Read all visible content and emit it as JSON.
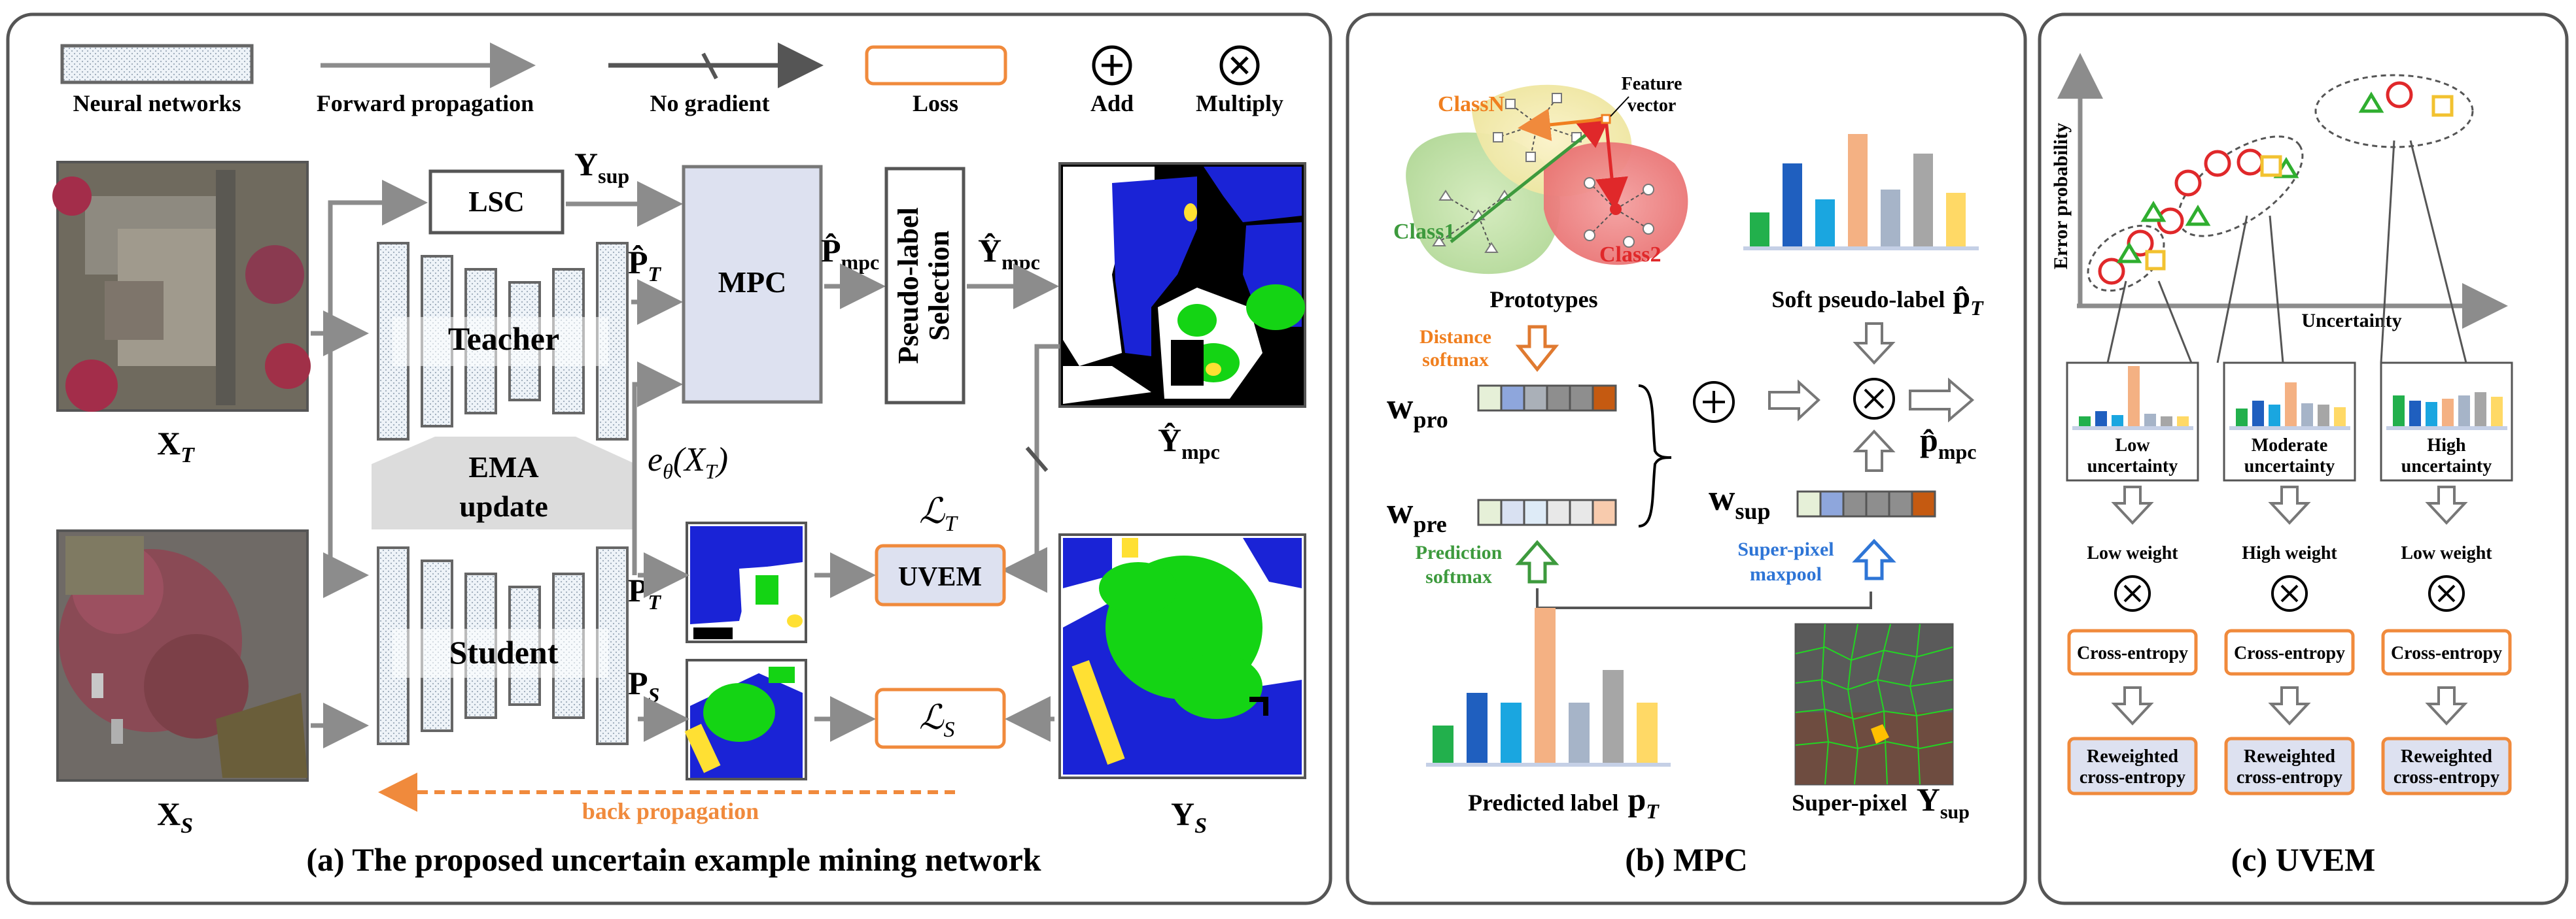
{
  "legend": {
    "neural_networks": "Neural networks",
    "forward_propagation": "Forward propagation",
    "no_gradient": "No gradient",
    "loss": "Loss",
    "add": "Add",
    "multiply": "Multiply"
  },
  "panel_a": {
    "caption": "(a) The proposed uncertain example mining network",
    "lsc": "LSC",
    "mpc": "MPC",
    "pseudo_label_selection": [
      "Pseudo-label",
      "Selection"
    ],
    "teacher": "Teacher",
    "student": "Student",
    "ema": [
      "EMA",
      "update"
    ],
    "uvem": "UVEM",
    "back_propagation": "back propagation",
    "y_sup": {
      "main": "Y",
      "sub": "sup"
    },
    "p_hat_t": {
      "main": "P̂",
      "sub": "T"
    },
    "p_hat_mpc": {
      "main": "P̂",
      "sub": "mpc"
    },
    "y_hat_mpc": {
      "main": "Ŷ",
      "sub": "mpc"
    },
    "e_theta": {
      "main": "e",
      "sub": "θ",
      "arg": "(X",
      "argsub": "T",
      "close": ")"
    },
    "x_t": {
      "main": "X",
      "sub": "T"
    },
    "x_s": {
      "main": "X",
      "sub": "S"
    },
    "p_t": {
      "main": "P",
      "sub": "T"
    },
    "p_s": {
      "main": "P",
      "sub": "S"
    },
    "y_s": {
      "main": "Y",
      "sub": "S"
    },
    "y_hat_mpc_bottom": {
      "main": "Ŷ",
      "sub": "mpc"
    },
    "loss_t": {
      "main": "ℒ",
      "sub": "T"
    },
    "loss_s": {
      "main": "ℒ",
      "sub": "S"
    }
  },
  "panel_b": {
    "caption": "(b) MPC",
    "class_n": "ClassN",
    "class_1": "Class1",
    "class_2": "Class2",
    "feature_vector": [
      "Feature",
      "vector"
    ],
    "prototypes": "Prototypes",
    "soft_pseudo_label": "Soft pseudo-label",
    "soft_pseudo_symbol": {
      "main": "p̂",
      "sub": "T"
    },
    "distance_softmax": [
      "Distance",
      "softmax"
    ],
    "prediction_softmax": [
      "Prediction",
      "softmax"
    ],
    "superpixel_maxpool": [
      "Super-pixel",
      "maxpool"
    ],
    "w_pro": {
      "main": "w",
      "sub": "pro"
    },
    "w_pre": {
      "main": "w",
      "sub": "pre"
    },
    "w_sup": {
      "main": "w",
      "sub": "sup"
    },
    "p_hat_mpc": {
      "main": "p̂",
      "sub": "mpc"
    },
    "predicted_label": "Predicted label",
    "predicted_symbol": {
      "main": "p",
      "sub": "T"
    },
    "superpixel": "Super-pixel",
    "superpixel_symbol": {
      "main": "Y",
      "sub": "sup"
    }
  },
  "panel_c": {
    "caption": "(c) UVEM",
    "y_axis": "Error probability",
    "x_axis": "Uncertainty",
    "groups": [
      {
        "uncertainty": [
          "Low",
          "uncertainty"
        ],
        "weight": "Low weight",
        "loss": "Cross-entropy",
        "reweighted": [
          "Reweighted",
          "cross-entropy"
        ]
      },
      {
        "uncertainty": [
          "Moderate",
          "uncertainty"
        ],
        "weight": "High weight",
        "loss": "Cross-entropy",
        "reweighted": [
          "Reweighted",
          "cross-entropy"
        ]
      },
      {
        "uncertainty": [
          "High",
          "uncertainty"
        ],
        "weight": "Low weight",
        "loss": "Cross-entropy",
        "reweighted": [
          "Reweighted",
          "cross-entropy"
        ]
      }
    ]
  },
  "colors": {
    "panel_border": "#555555",
    "arrow_gray": "#8c8c8c",
    "loss_orange": "#f08a3c",
    "back_prop": "#f08a3c",
    "mpc_fill": "#dde1f0",
    "bar_colors": [
      "#22b04c",
      "#1f5fbf",
      "#1aa6e0",
      "#f4b183",
      "#a6b4c8",
      "#a6a6a6",
      "#ffd966"
    ],
    "class_red": "#e0282a",
    "class_orange": "#f07f1f",
    "class_green": "#3d9a3d",
    "label_blue": "#2e75d6"
  }
}
